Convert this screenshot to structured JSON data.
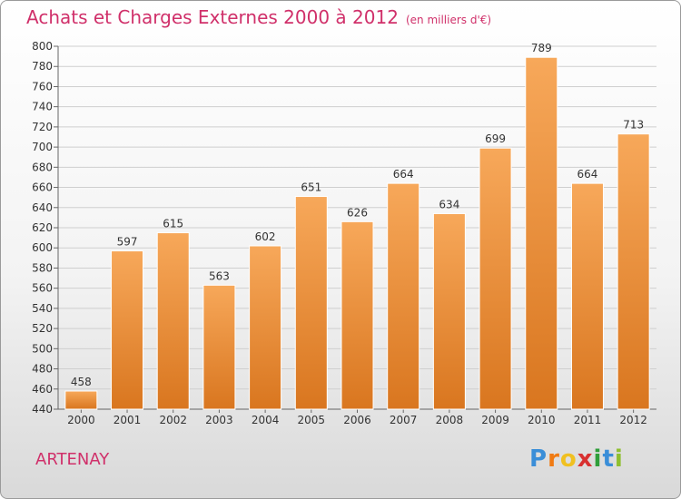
{
  "header": {
    "title": "Achats et Charges Externes 2000 à 2012",
    "unit": "(en milliers d'€)"
  },
  "footer": {
    "location": "ARTENAY",
    "logo_letters": [
      "P",
      "r",
      "o",
      "x",
      "i",
      "t",
      "i"
    ],
    "logo_colors": [
      "#3a8ed8",
      "#f07a12",
      "#f0c020",
      "#d83030",
      "#2f9e3a",
      "#3a8ed8",
      "#8fbf2f"
    ]
  },
  "colors": {
    "accent": "#d0306a",
    "bar_top": "#f7a85a",
    "bar_bottom": "#d9761f",
    "bar_stroke": "#ffffff",
    "grid": "#cfcfcf",
    "tick_text": "#333333"
  },
  "chart_data": {
    "type": "bar",
    "categories": [
      "2000",
      "2001",
      "2002",
      "2003",
      "2004",
      "2005",
      "2006",
      "2007",
      "2008",
      "2009",
      "2010",
      "2011",
      "2012"
    ],
    "values": [
      458,
      597,
      615,
      563,
      602,
      651,
      626,
      664,
      634,
      699,
      789,
      664,
      713
    ],
    "value_labels": [
      "458",
      "597",
      "615",
      "563",
      "602",
      "651",
      "626",
      "664",
      "634",
      "699",
      "789",
      "664",
      "713"
    ],
    "yticks": [
      440,
      460,
      480,
      500,
      520,
      540,
      560,
      580,
      600,
      620,
      640,
      660,
      680,
      700,
      720,
      740,
      760,
      780,
      800
    ],
    "ylim": [
      440,
      800
    ],
    "grid": true
  }
}
